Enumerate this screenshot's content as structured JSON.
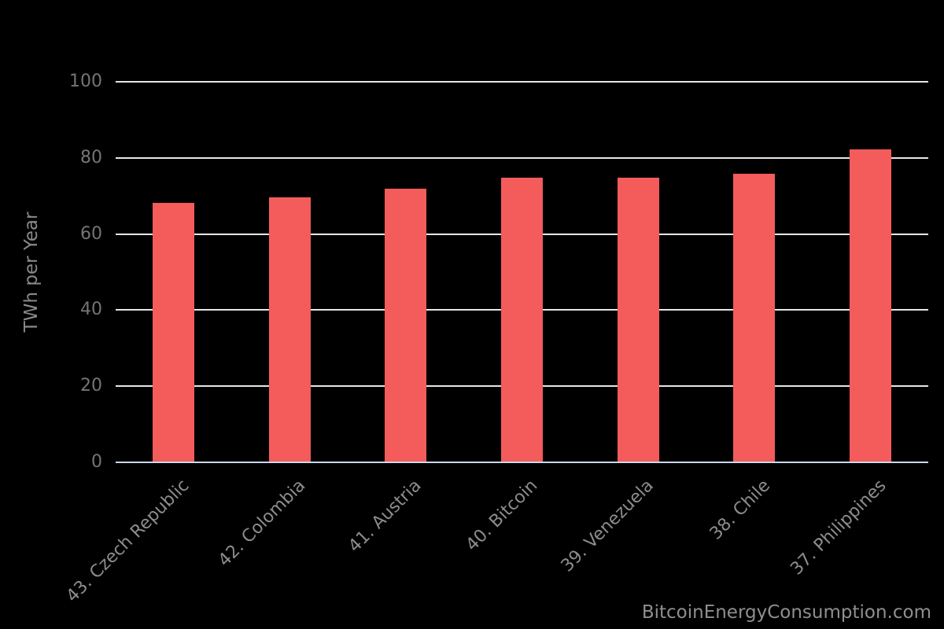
{
  "chart_data": {
    "type": "bar",
    "title": "",
    "categories": [
      "43. Czech Republic",
      "42. Colombia",
      "41. Austria",
      "40. Bitcoin",
      "39. Venezuela",
      "38. Chile",
      "37. Philippines"
    ],
    "values": [
      68,
      69.5,
      71.7,
      74.5,
      74.5,
      75.7,
      82
    ],
    "xlabel": "",
    "ylabel": "TWh per Year",
    "ylim": [
      0,
      100
    ],
    "yticks": [
      0,
      20,
      40,
      60,
      80,
      100
    ],
    "grid": true,
    "legend_position": "none",
    "colors": {
      "background": "#000000",
      "bar": "#f45b5b",
      "gridline": "#e6e6e6",
      "axis_line": "#ccd6eb",
      "tick_label": "#757575",
      "category_label": "#8c8c8c",
      "axis_title": "#8a8a8a",
      "watermark": "#8f8f8f"
    }
  },
  "watermark": "BitcoinEnergyConsumption.com"
}
